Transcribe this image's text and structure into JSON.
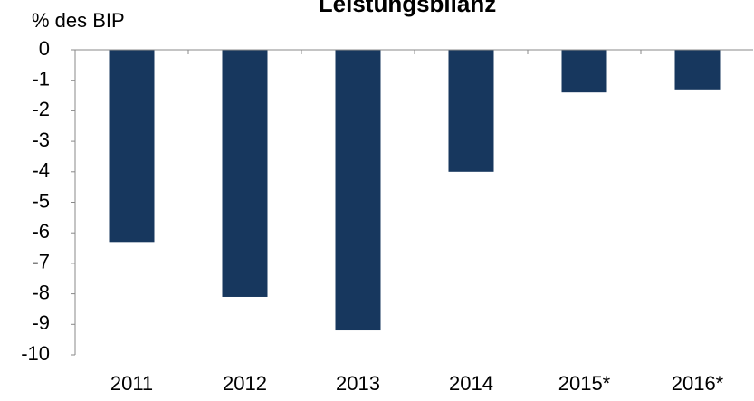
{
  "chart_data": {
    "type": "bar",
    "title": "Leistungsbilanz",
    "y_label": "% des BIP",
    "categories": [
      "2011",
      "2012",
      "2013",
      "2014",
      "2015*",
      "2016*"
    ],
    "values": [
      -6.3,
      -8.1,
      -9.2,
      -4.0,
      -1.4,
      -1.3
    ],
    "color": "#17375e",
    "ylim": [
      -10,
      0
    ],
    "yticks": [
      0,
      -1,
      -2,
      -3,
      -4,
      -5,
      -6,
      -7,
      -8,
      -9,
      -10
    ],
    "grid": false
  }
}
